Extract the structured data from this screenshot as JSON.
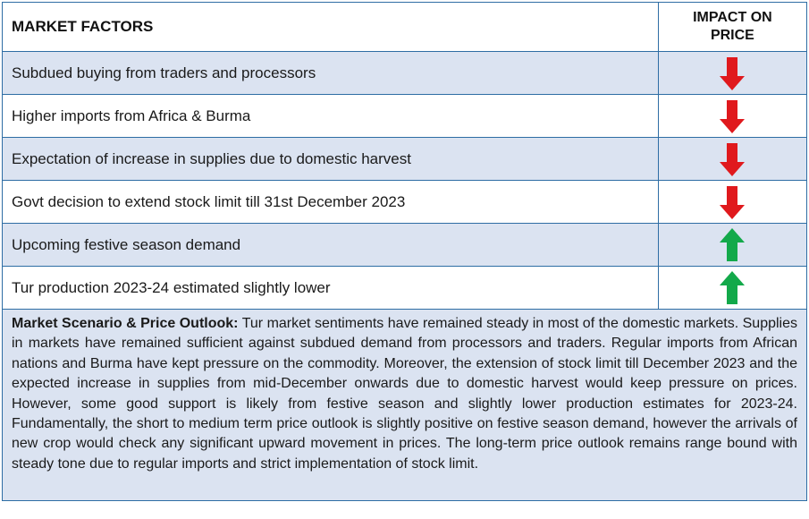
{
  "header": {
    "factors_label": "MARKET FACTORS",
    "impact_label_line1": "IMPACT ON",
    "impact_label_line2": "PRICE"
  },
  "factors": [
    {
      "text": "Subdued buying from traders and processors",
      "impact": "down",
      "icon": "down-arrow-icon",
      "color": "#e0191d"
    },
    {
      "text": "Higher imports from Africa & Burma",
      "impact": "down",
      "icon": "down-arrow-icon",
      "color": "#e0191d"
    },
    {
      "text": "Expectation of increase in supplies due to domestic harvest",
      "impact": "down",
      "icon": "down-arrow-icon",
      "color": "#e0191d"
    },
    {
      "text": "Govt decision to extend stock limit till 31st December 2023",
      "impact": "down",
      "icon": "down-arrow-icon",
      "color": "#e0191d"
    },
    {
      "text": "Upcoming festive season demand",
      "impact": "up",
      "icon": "up-arrow-icon",
      "color": "#13a94a"
    },
    {
      "text": "Tur production 2023-24 estimated slightly lower",
      "impact": "up",
      "icon": "up-arrow-icon",
      "color": "#13a94a"
    }
  ],
  "outlook": {
    "title": "Market Scenario & Price Outlook:",
    "body": " Tur market sentiments have remained steady in most of the domestic markets. Supplies in markets have remained sufficient against subdued demand from processors and traders. Regular imports from African nations and Burma have kept pressure on the commodity. Moreover, the extension of stock limit till December 2023 and the expected increase in supplies from mid-December onwards due to domestic harvest would keep pressure on prices. However, some good support is likely from festive season and slightly lower production estimates for 2023-24. Fundamentally, the short to medium term price outlook is slightly positive on festive season demand, however the arrivals of new crop would check any significant upward movement in prices. The long-term price outlook remains range bound with steady tone due to regular imports and strict implementation of stock limit."
  },
  "colors": {
    "border": "#2e6da4",
    "shade": "#dbe3f1",
    "down": "#e0191d",
    "up": "#13a94a"
  }
}
